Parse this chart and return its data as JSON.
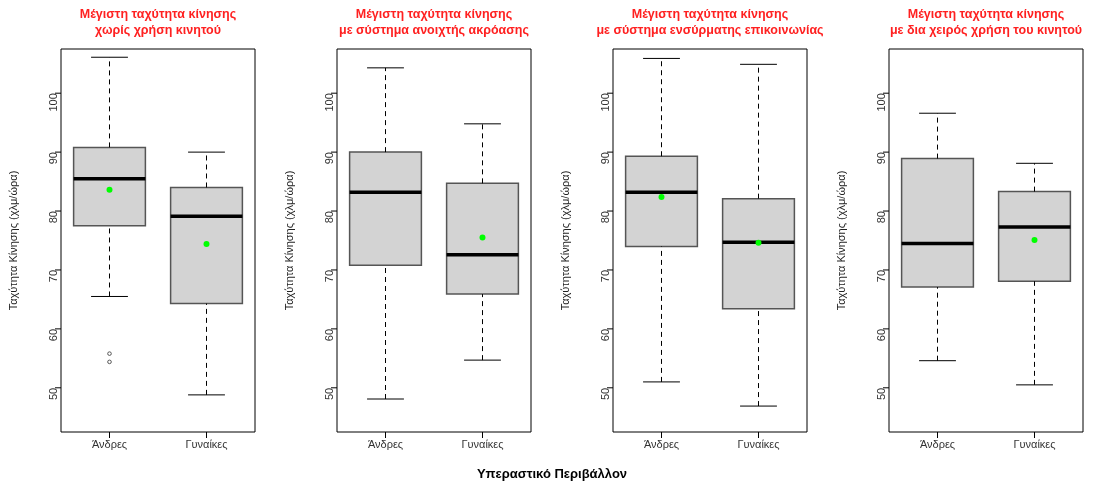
{
  "chart_data": [
    {
      "type": "box",
      "title": "Μέγιστη ταχύτητα κίνησης\nχωρίς χρήση κινητού",
      "ylabel": "Ταχύτητα Κίνησης (χλμ/ώρα)",
      "categories": [
        "Άνδρες",
        "Γυναίκες"
      ],
      "ylim": [
        42.5,
        107.5
      ],
      "yticks": [
        50,
        60,
        70,
        80,
        90,
        100
      ],
      "series": [
        {
          "type": "box",
          "color": "#d3d3d3",
          "boxes": [
            {
              "low": 65.5,
              "q1": 77.5,
              "median": 85.5,
              "q3": 90.8,
              "high": 106.1,
              "outliers": [
                55.8,
                54.4
              ]
            },
            {
              "low": 48.8,
              "q1": 64.3,
              "median": 79.1,
              "q3": 84,
              "high": 90
            }
          ]
        },
        {
          "type": "scatter",
          "color": "#00ff00",
          "x": [
            "Άνδρες",
            "Γυναίκες"
          ],
          "values": [
            83.6,
            74.4
          ]
        }
      ]
    },
    {
      "type": "box",
      "title": "Μέγιστη ταχύτητα κίνησης\nμε σύστημα ανοιχτής ακρόασης",
      "ylabel": "Ταχύτητα Κίνησης (χλμ/ώρα)",
      "xlabel": "Υπεραστικό Περιβάλλον",
      "categories": [
        "Άνδρες",
        "Γυναίκες"
      ],
      "ylim": [
        42.5,
        107.5
      ],
      "yticks": [
        50,
        60,
        70,
        80,
        90,
        100
      ],
      "series": [
        {
          "type": "box",
          "color": "#d3d3d3",
          "boxes": [
            {
              "low": 48.1,
              "q1": 70.8,
              "median": 83.2,
              "q3": 90,
              "high": 104.3
            },
            {
              "low": 54.7,
              "q1": 65.9,
              "median": 72.6,
              "q3": 84.7,
              "high": 94.8
            }
          ]
        },
        {
          "type": "scatter",
          "color": "#00ff00",
          "x": [
            "Άνδρες",
            "Γυναίκες"
          ],
          "values": [
            null,
            75.5
          ]
        }
      ]
    },
    {
      "type": "box",
      "title": "Μέγιστη ταχύτητα κίνησης\nμε σύστημα ενσύρματης επικοινωνίας",
      "ylabel": "Ταχύτητα Κίνησης (χλμ/ώρα)",
      "categories": [
        "Άνδρες",
        "Γυναίκες"
      ],
      "ylim": [
        42.5,
        107.5
      ],
      "yticks": [
        50,
        60,
        70,
        80,
        90,
        100
      ],
      "series": [
        {
          "type": "box",
          "color": "#d3d3d3",
          "boxes": [
            {
              "low": 51,
              "q1": 74,
              "median": 83.2,
              "q3": 89.3,
              "high": 105.9
            },
            {
              "low": 46.9,
              "q1": 63.4,
              "median": 74.7,
              "q3": 82.1,
              "high": 104.9
            }
          ]
        },
        {
          "type": "scatter",
          "color": "#00ff00",
          "x": [
            "Άνδρες",
            "Γυναίκες"
          ],
          "values": [
            82.4,
            74.6
          ]
        }
      ]
    },
    {
      "type": "box",
      "title": "Μέγιστη ταχύτητα κίνησης\nμε δια χειρός χρήση του κινητού",
      "ylabel": "Ταχύτητα Κίνησης (χλμ/ώρα)",
      "categories": [
        "Άνδρες",
        "Γυναίκες"
      ],
      "ylim": [
        42.5,
        107.5
      ],
      "yticks": [
        50,
        60,
        70,
        80,
        90,
        100
      ],
      "series": [
        {
          "type": "box",
          "color": "#d3d3d3",
          "boxes": [
            {
              "low": 54.6,
              "q1": 67.1,
              "median": 74.5,
              "q3": 88.9,
              "high": 96.6
            },
            {
              "low": 50.5,
              "q1": 68.1,
              "median": 77.3,
              "q3": 83.3,
              "high": 88.1
            }
          ]
        },
        {
          "type": "scatter",
          "color": "#00ff00",
          "x": [
            "Άνδρες",
            "Γυναίκες"
          ],
          "values": [
            null,
            75.1
          ]
        }
      ]
    }
  ]
}
